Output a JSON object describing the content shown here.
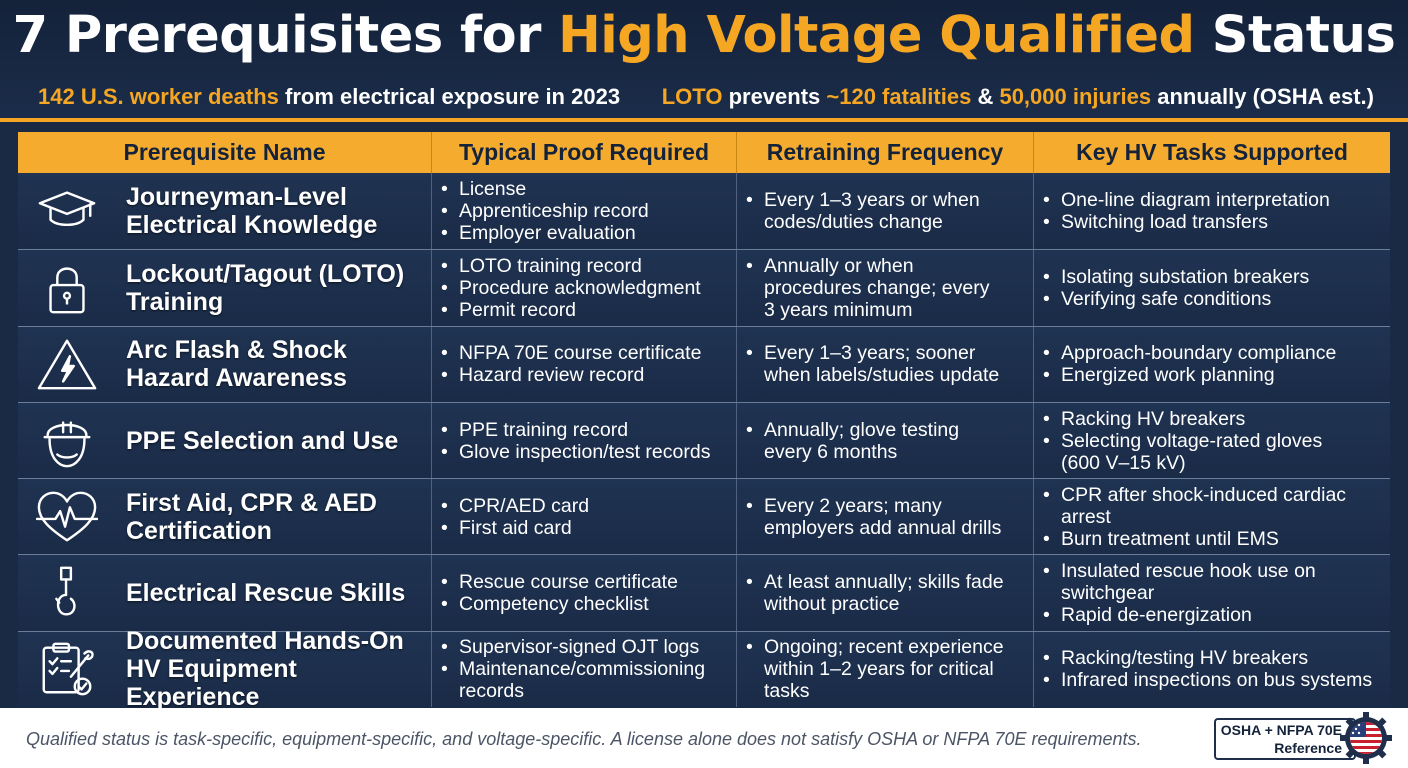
{
  "header": {
    "title_prefix": "7 Prerequisites for ",
    "title_highlight": "High Voltage Qualified",
    "title_suffix": " Status",
    "stat_left": {
      "highlight": "142 U.S. worker deaths",
      "text": " from electrical exposure in 2023"
    },
    "stat_right": {
      "h1": "LOTO",
      "t1": " prevents ",
      "h2": "~120 fatalities",
      "t2": " & ",
      "h3": "50,000 injuries",
      "t3": " annually (OSHA est.)"
    }
  },
  "table": {
    "columns": [
      "Prerequisite Name",
      "Typical Proof Required",
      "Retraining Frequency",
      "Key HV Tasks Supported"
    ],
    "rows": [
      {
        "icon": "graduation-cap-icon",
        "name": [
          "Journeyman-Level",
          "Electrical Knowledge"
        ],
        "proof": [
          "License",
          "Apprenticeship record",
          "Employer evaluation"
        ],
        "frequency": [
          "Every 1–3 years or when",
          "codes/duties change"
        ],
        "tasks": [
          "One-line diagram interpretation",
          "Switching load transfers"
        ]
      },
      {
        "icon": "padlock-icon",
        "name": [
          "Lockout/Tagout (LOTO)",
          "Training"
        ],
        "proof": [
          "LOTO training record",
          "Procedure acknowledgment",
          "Permit record"
        ],
        "frequency": [
          "Annually or when",
          "procedures change; every",
          "3 years minimum"
        ],
        "tasks": [
          "Isolating substation breakers",
          "Verifying safe conditions"
        ]
      },
      {
        "icon": "high-voltage-warning-icon",
        "name": [
          "Arc Flash & Shock",
          "Hazard Awareness"
        ],
        "proof": [
          "NFPA 70E course certificate",
          "Hazard review record"
        ],
        "frequency": [
          "Every 1–3 years; sooner",
          "when labels/studies update"
        ],
        "tasks": [
          "Approach-boundary compliance",
          "Energized work planning"
        ]
      },
      {
        "icon": "hard-hat-worker-icon",
        "name": [
          "PPE Selection and Use"
        ],
        "proof": [
          "PPE training record",
          "Glove inspection/test records"
        ],
        "frequency": [
          "Annually; glove testing",
          "every 6 months"
        ],
        "tasks": [
          "Racking HV breakers",
          "Selecting voltage-rated gloves\n(600 V–15 kV)"
        ]
      },
      {
        "icon": "heart-pulse-icon",
        "name": [
          "First Aid, CPR & AED",
          "Certification"
        ],
        "proof": [
          "CPR/AED card",
          "First aid card"
        ],
        "frequency": [
          "Every 2 years; many",
          "employers add annual drills"
        ],
        "tasks": [
          "CPR after shock-induced cardiac\narrest",
          "Burn treatment until EMS"
        ]
      },
      {
        "icon": "rescue-hook-icon",
        "name": [
          "Electrical Rescue Skills"
        ],
        "proof": [
          "Rescue course certificate",
          "Competency checklist"
        ],
        "frequency": [
          "At least annually; skills fade",
          "without practice"
        ],
        "tasks": [
          "Insulated rescue hook use on\nswitchgear",
          "Rapid de-energization"
        ]
      },
      {
        "icon": "clipboard-wrench-icon",
        "name": [
          "Documented Hands-On",
          "HV Equipment Experience"
        ],
        "proof": [
          "Supervisor-signed OJT logs",
          "Maintenance/commissioning\nrecords"
        ],
        "frequency": [
          "Ongoing; recent experience",
          "within 1–2 years for critical",
          "tasks"
        ],
        "tasks": [
          "Racking/testing HV breakers",
          "Infrared inspections on bus systems"
        ]
      }
    ]
  },
  "footer": {
    "note": "Qualified status is task-specific, equipment-specific, and voltage-specific. A license alone does not satisfy OSHA or NFPA 70E requirements.",
    "badge_line1": "OSHA + NFPA 70E",
    "badge_line2": "Reference",
    "seal_icon": "us-flag-gear-icon"
  },
  "colors": {
    "accent": "#f5a623",
    "navy": "#1a2a44",
    "row": "#1f3352"
  }
}
